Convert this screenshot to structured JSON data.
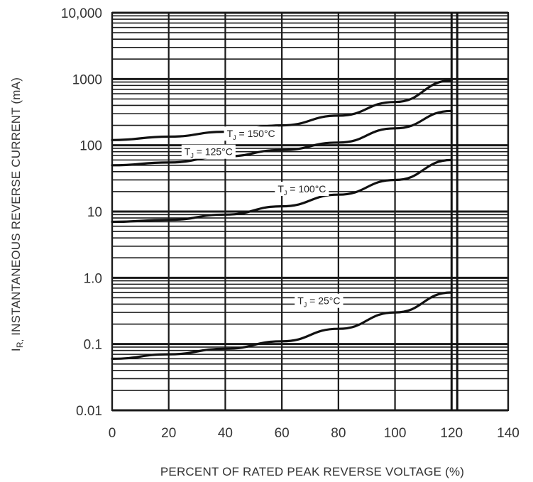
{
  "chart_data": {
    "type": "line",
    "title": "",
    "xlabel": "PERCENT OF RATED PEAK REVERSE VOLTAGE (%)",
    "ylabel_main": "INSTANTANEOUS REVERSE CURRENT (mA)",
    "ylabel_symbol": "I",
    "ylabel_subscript": "R,",
    "xlim": [
      0,
      140
    ],
    "ylim": [
      0.01,
      10000
    ],
    "yscale": "log",
    "grid": true,
    "legend": "none",
    "x_ticks": [
      0,
      20,
      40,
      60,
      80,
      100,
      120,
      140
    ],
    "x_tick_labels": [
      "0",
      "20",
      "40",
      "60",
      "80",
      "100",
      "120",
      "140"
    ],
    "y_ticks": [
      0.01,
      0.1,
      1,
      10,
      100,
      1000,
      10000
    ],
    "y_tick_labels": [
      "0.01",
      "0.1",
      "1.0",
      "10",
      "100",
      "1000",
      "10,000"
    ],
    "series": [
      {
        "name": "T J = 150°C",
        "label_prefix": "T",
        "label_sub": "J",
        "label_suffix": " = 150°C",
        "label_at": [
          30,
          150
        ],
        "x": [
          0,
          20,
          40,
          60,
          80,
          100,
          120
        ],
        "y": [
          120,
          135,
          160,
          200,
          280,
          450,
          950
        ]
      },
      {
        "name": "T J = 125°C",
        "label_prefix": "T",
        "label_sub": "J",
        "label_suffix": " = 125°C",
        "label_at": [
          15,
          80
        ],
        "x": [
          0,
          20,
          40,
          60,
          80,
          100,
          120
        ],
        "y": [
          50,
          55,
          68,
          85,
          110,
          180,
          330
        ]
      },
      {
        "name": "T J = 100°C",
        "label_prefix": "T",
        "label_sub": "J",
        "label_suffix": " = 100°C",
        "label_at": [
          48,
          22
        ],
        "x": [
          0,
          20,
          40,
          60,
          80,
          100,
          120
        ],
        "y": [
          7,
          7.5,
          9,
          12,
          18,
          30,
          60
        ]
      },
      {
        "name": "T J = 25°C",
        "label_prefix": "T",
        "label_sub": "J",
        "label_suffix": " = 25°C",
        "label_at": [
          55,
          0.45
        ],
        "x": [
          0,
          20,
          40,
          60,
          80,
          100,
          120
        ],
        "y": [
          0.06,
          0.07,
          0.085,
          0.11,
          0.17,
          0.3,
          0.6
        ]
      }
    ],
    "vertical_line_x": [
      120,
      122
    ],
    "colors": {
      "line": "#111111",
      "grid": "#1a1a1a",
      "text": "#333333"
    }
  }
}
